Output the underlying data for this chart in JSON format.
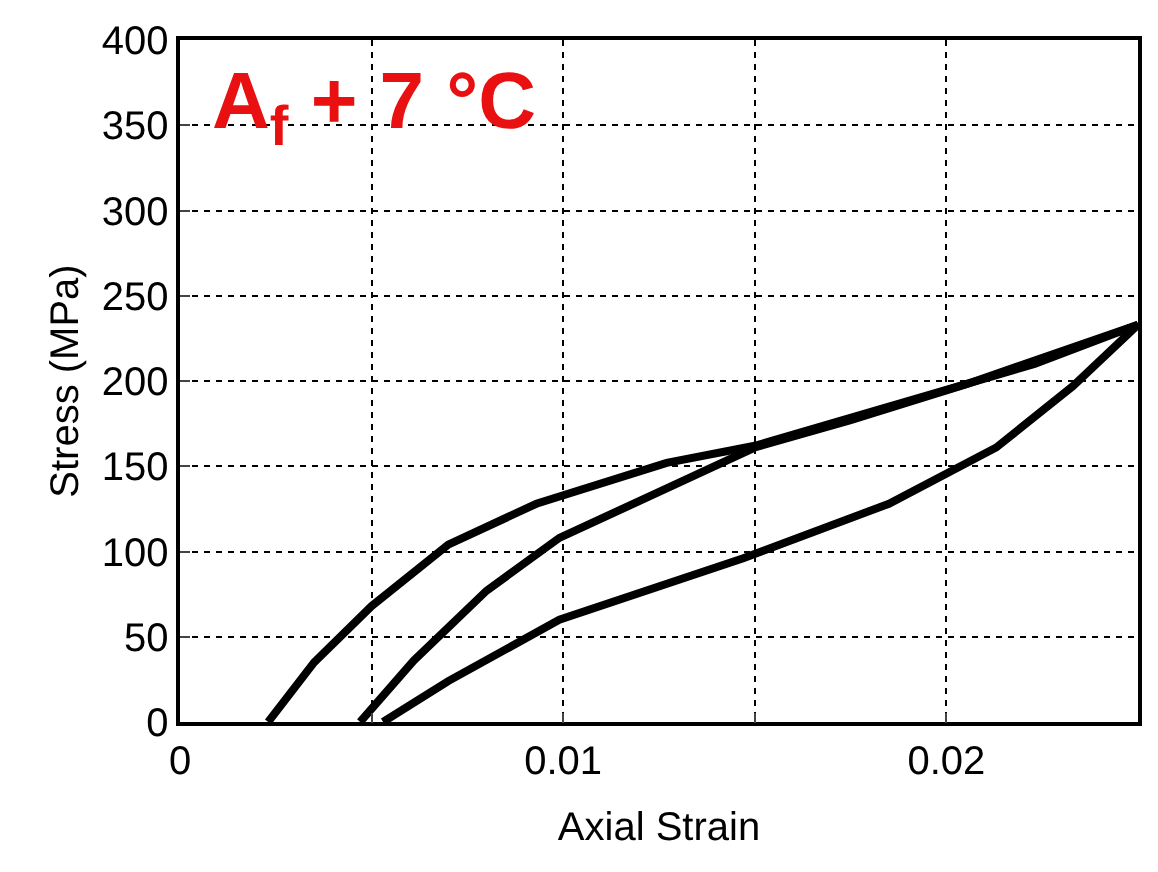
{
  "chart_data": {
    "type": "line",
    "xlabel": "Axial Strain",
    "ylabel": "Stress (MPa)",
    "annotations": [
      "A$_{f}$ + 7 °C"
    ],
    "xlim": [
      0,
      0.025
    ],
    "ylim": [
      0,
      400
    ],
    "xticks": [
      0,
      {
        "value": 0.005,
        "label": null
      },
      0.01,
      {
        "value": 0.015,
        "label": null
      },
      0.02
    ],
    "yticks": [
      0,
      50,
      100,
      150,
      200,
      250,
      300,
      350,
      400
    ],
    "grid": true,
    "line_style": "solid",
    "marker": "none",
    "series": [
      {
        "color": "#000000",
        "x": [
          0.0053,
          0.007,
          0.0099,
          0.0147,
          0.0185,
          0.0213,
          0.0233,
          0.025,
          0.0223,
          0.0185,
          0.015,
          0.0127,
          0.0093,
          0.007,
          0.005,
          0.0035,
          0.0023
        ],
        "values": [
          0,
          24,
          60,
          96,
          128,
          161,
          197,
          233,
          210,
          185,
          162,
          152,
          128,
          104,
          68,
          35,
          0
        ]
      },
      {
        "color": "#000000",
        "x": [
          0.0047,
          0.0061,
          0.008,
          0.0099,
          0.0127,
          0.015,
          0.0175,
          0.0205,
          0.025
        ],
        "values": [
          0,
          36,
          77,
          108,
          137,
          161,
          177,
          198,
          233
        ]
      }
    ]
  }
}
